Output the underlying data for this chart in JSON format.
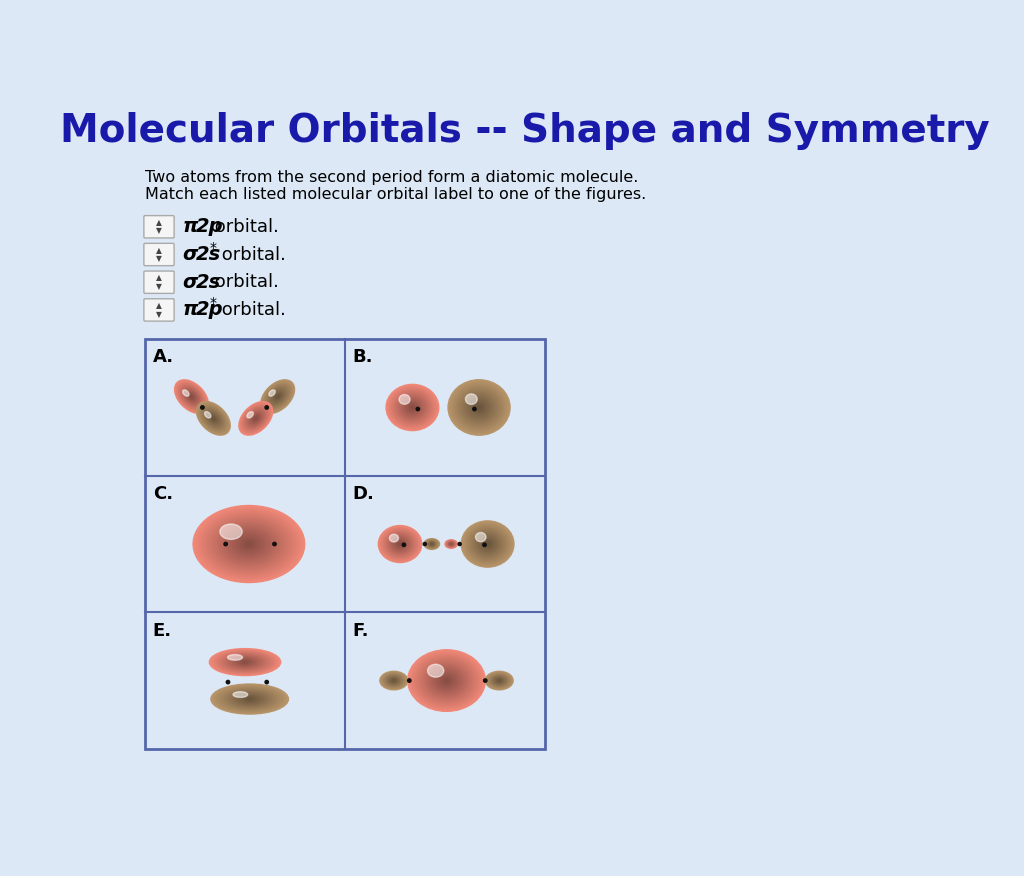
{
  "title": "Molecular Orbitals -- Shape and Symmetry",
  "title_color": "#1a1aaa",
  "bg_color": "#dce8f5",
  "subtitle1": "Two atoms from the second period form a diatomic molecule.",
  "subtitle2": "Match each listed molecular orbital label to one of the figures.",
  "cell_labels": [
    "A.",
    "B.",
    "C.",
    "D.",
    "E.",
    "F."
  ],
  "salmon_color": "#f08878",
  "salmon_dark": "#d06858",
  "tan_color": "#b8956a",
  "tan_dark": "#907040",
  "white_highlight": "#ffffff",
  "dot_color": "#111111",
  "grid_border": "#5566aa",
  "dropdown_bg": "#f5f5f5",
  "dropdown_border": "#aaaaaa"
}
